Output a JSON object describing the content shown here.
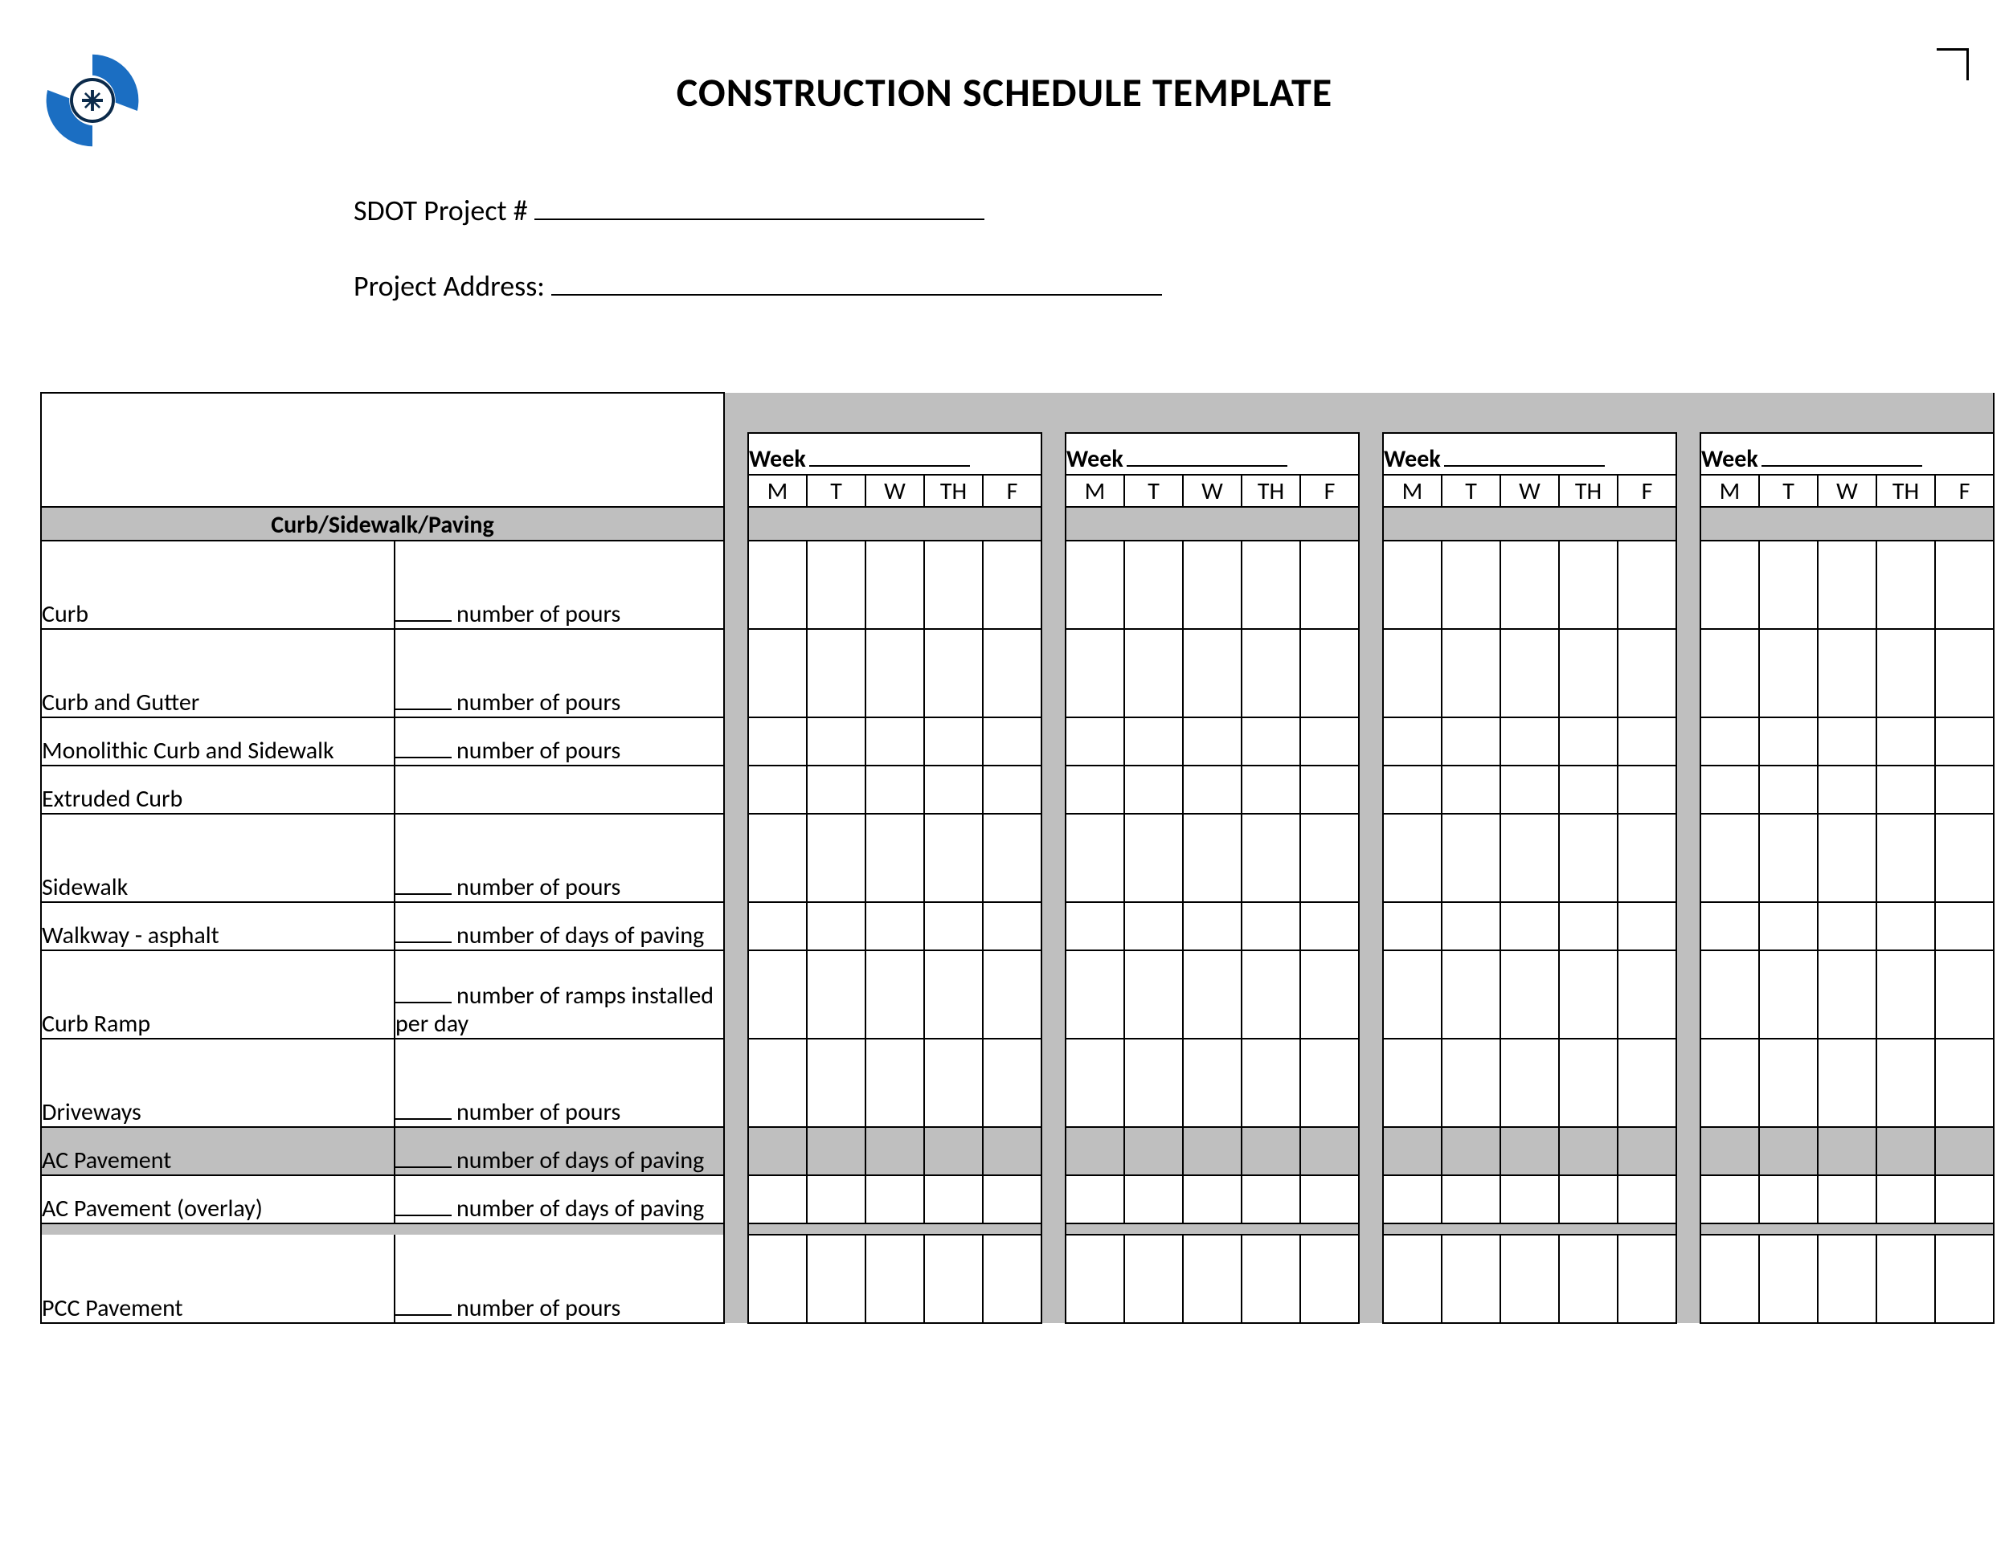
{
  "title": "CONSTRUCTION SCHEDULE TEMPLATE",
  "meta": {
    "project_no_label": "SDOT Project #",
    "project_no_line_width": 560,
    "address_label": "Project Address:",
    "address_line_width": 760
  },
  "weeks": [
    {
      "label": "Week",
      "days": [
        "M",
        "T",
        "W",
        "TH",
        "F"
      ]
    },
    {
      "label": "Week",
      "days": [
        "M",
        "T",
        "W",
        "TH",
        "F"
      ]
    },
    {
      "label": "Week",
      "days": [
        "M",
        "T",
        "W",
        "TH",
        "F"
      ]
    },
    {
      "label": "Week",
      "days": [
        "M",
        "T",
        "W",
        "TH",
        "F"
      ]
    }
  ],
  "section_header": "Curb/Sidewalk/Paving",
  "rows": [
    {
      "task": "Curb",
      "desc_blank": true,
      "desc": "number of pours",
      "height": "tall"
    },
    {
      "task": "Curb and Gutter",
      "desc_blank": true,
      "desc": "number of pours",
      "height": "tall"
    },
    {
      "task": "Monolithic Curb and Sidewalk",
      "desc_blank": true,
      "desc": "number of pours",
      "height": "short"
    },
    {
      "task": "Extruded Curb",
      "desc_blank": false,
      "desc": "",
      "height": "short",
      "no_bottom": true
    },
    {
      "task": "Sidewalk",
      "desc_blank": true,
      "desc": "number of pours",
      "height": "tall"
    },
    {
      "task": "Walkway - asphalt",
      "desc_blank": true,
      "desc": "number of days of paving",
      "height": "short"
    },
    {
      "task": "Curb Ramp",
      "desc_blank": true,
      "desc": "number of ramps installed per day",
      "height": "tall"
    },
    {
      "task": "Driveways",
      "desc_blank": true,
      "desc": "number of pours",
      "height": "tall"
    },
    {
      "task": "AC Pavement",
      "desc_blank": true,
      "desc": "number of days of paving",
      "height": "short",
      "shaded": true
    },
    {
      "task": "AC Pavement (overlay)",
      "desc_blank": true,
      "desc": "number of days of paving",
      "height": "short"
    },
    {
      "task": "PCC Pavement",
      "desc_blank": true,
      "desc": "number of pours",
      "height": "tall",
      "gap_before": true
    }
  ],
  "colors": {
    "gray": "#bfbfbf",
    "logo_blue": "#1b6ec2",
    "logo_dark": "#0b2a4a"
  }
}
